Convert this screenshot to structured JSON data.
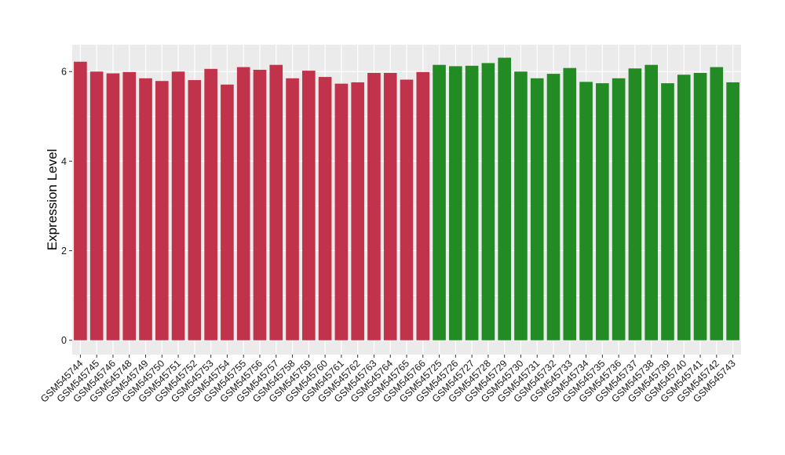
{
  "chart_data": {
    "type": "bar",
    "ylabel": "Expression Level",
    "xlabel": "",
    "ylim": [
      -0.32,
      6.6
    ],
    "yticks": [
      0,
      2,
      4,
      6
    ],
    "grid": true,
    "legend": "none",
    "categories": [
      "GSM545744",
      "GSM545745",
      "GSM545746",
      "GSM545748",
      "GSM545749",
      "GSM545750",
      "GSM545751",
      "GSM545752",
      "GSM545753",
      "GSM545754",
      "GSM545755",
      "GSM545756",
      "GSM545757",
      "GSM545758",
      "GSM545759",
      "GSM545760",
      "GSM545761",
      "GSM545762",
      "GSM545763",
      "GSM545764",
      "GSM545765",
      "GSM545766",
      "GSM545725",
      "GSM545726",
      "GSM545727",
      "GSM545728",
      "GSM545729",
      "GSM545730",
      "GSM545731",
      "GSM545732",
      "GSM545733",
      "GSM545734",
      "GSM545735",
      "GSM545736",
      "GSM545737",
      "GSM545738",
      "GSM545739",
      "GSM545740",
      "GSM545741",
      "GSM545742",
      "GSM545743"
    ],
    "values": [
      6.22,
      6.0,
      5.96,
      5.99,
      5.85,
      5.79,
      6.0,
      5.81,
      6.06,
      5.71,
      6.1,
      6.04,
      6.15,
      5.85,
      6.02,
      5.88,
      5.73,
      5.76,
      5.97,
      5.97,
      5.82,
      5.99,
      6.15,
      6.12,
      6.13,
      6.19,
      6.31,
      6.0,
      5.85,
      5.95,
      6.08,
      5.77,
      5.74,
      5.85,
      6.07,
      6.15,
      5.74,
      5.93,
      5.97,
      6.1,
      5.76
    ],
    "groups": [
      0,
      0,
      0,
      0,
      0,
      0,
      0,
      0,
      0,
      0,
      0,
      0,
      0,
      0,
      0,
      0,
      0,
      0,
      0,
      0,
      0,
      0,
      1,
      1,
      1,
      1,
      1,
      1,
      1,
      1,
      1,
      1,
      1,
      1,
      1,
      1,
      1,
      1,
      1,
      1,
      1
    ],
    "group_colors": [
      "#c0334a",
      "#238b23"
    ],
    "panel_background": "#ebebeb",
    "grid_color": "#ffffff"
  }
}
